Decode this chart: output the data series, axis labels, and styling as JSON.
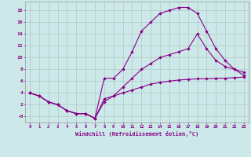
{
  "xlabel": "Windchill (Refroidissement éolien,°C)",
  "bg_color": "#cce8e8",
  "grid_color": "#b0c8c8",
  "line_color": "#880088",
  "xlim": [
    -0.5,
    23.5
  ],
  "ylim": [
    -1.0,
    19.5
  ],
  "xticks": [
    0,
    1,
    2,
    3,
    4,
    5,
    6,
    7,
    8,
    9,
    10,
    11,
    12,
    13,
    14,
    15,
    16,
    17,
    18,
    19,
    20,
    21,
    22,
    23
  ],
  "yticks": [
    0,
    2,
    4,
    6,
    8,
    10,
    12,
    14,
    16,
    18
  ],
  "ytick_labels": [
    "-0",
    "2",
    "4",
    "6",
    "8",
    "10",
    "12",
    "14",
    "16",
    "18"
  ],
  "curve1_x": [
    0,
    1,
    2,
    3,
    4,
    5,
    6,
    7,
    8,
    9,
    10,
    11,
    12,
    13,
    14,
    15,
    16,
    17,
    18,
    19,
    20,
    21,
    22,
    23
  ],
  "curve1_y": [
    4.0,
    3.5,
    2.5,
    2.0,
    1.0,
    0.5,
    0.5,
    -0.3,
    6.5,
    6.5,
    8.0,
    11.0,
    14.5,
    16.0,
    17.5,
    18.0,
    18.5,
    18.5,
    17.5,
    14.5,
    11.5,
    9.5,
    8.0,
    7.0
  ],
  "curve2_x": [
    0,
    1,
    2,
    3,
    4,
    5,
    6,
    7,
    8,
    9,
    10,
    11,
    12,
    13,
    14,
    15,
    16,
    17,
    18,
    19,
    20,
    21,
    22,
    23
  ],
  "curve2_y": [
    4.0,
    3.5,
    2.5,
    2.0,
    1.0,
    0.5,
    0.5,
    -0.3,
    2.5,
    3.5,
    5.0,
    6.5,
    8.0,
    9.0,
    10.0,
    10.5,
    11.0,
    11.5,
    14.0,
    11.5,
    9.5,
    8.5,
    8.0,
    7.5
  ],
  "curve3_x": [
    0,
    1,
    2,
    3,
    4,
    5,
    6,
    7,
    8,
    9,
    10,
    11,
    12,
    13,
    14,
    15,
    16,
    17,
    18,
    19,
    20,
    21,
    22,
    23
  ],
  "curve3_y": [
    4.0,
    3.5,
    2.5,
    2.0,
    1.0,
    0.5,
    0.5,
    -0.3,
    3.0,
    3.5,
    4.0,
    4.5,
    5.0,
    5.5,
    5.8,
    6.0,
    6.2,
    6.3,
    6.4,
    6.4,
    6.5,
    6.5,
    6.6,
    6.7
  ]
}
